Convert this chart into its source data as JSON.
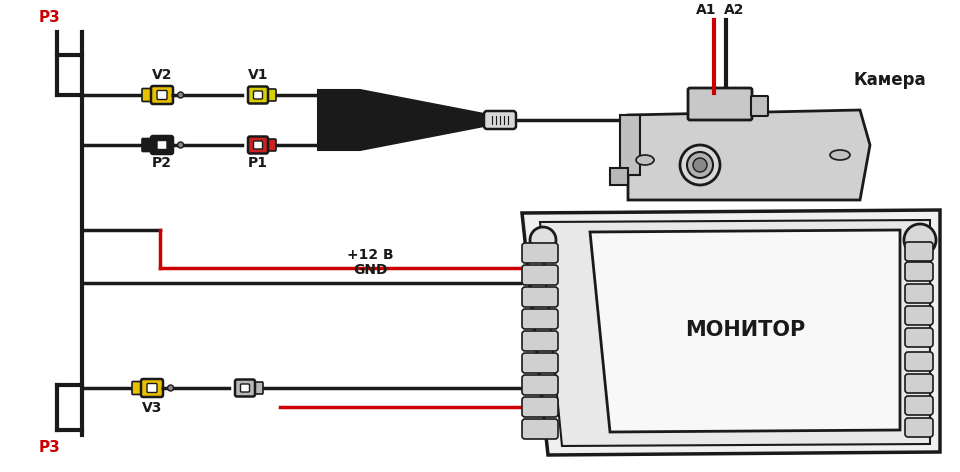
{
  "bg_color": "#ffffff",
  "lc": "#1a1a1a",
  "rc": "#cc0000",
  "yc": "#e8c000",
  "yc_light": "#d4c060",
  "gray_dark": "#888888",
  "gray_med": "#aaaaaa",
  "gray_light": "#cccccc",
  "labels": {
    "P3_top": "P3",
    "P3_bottom": "P3",
    "V1": "V1",
    "V2": "V2",
    "P1": "P1",
    "P2": "P2",
    "V3": "V3",
    "A1": "A1",
    "A2": "A2",
    "camera": "Камера",
    "monitor": "МОНИТОР",
    "plus12v": "+12 В",
    "gnd": "GND"
  },
  "figsize": [
    9.6,
    4.72
  ],
  "dpi": 100
}
